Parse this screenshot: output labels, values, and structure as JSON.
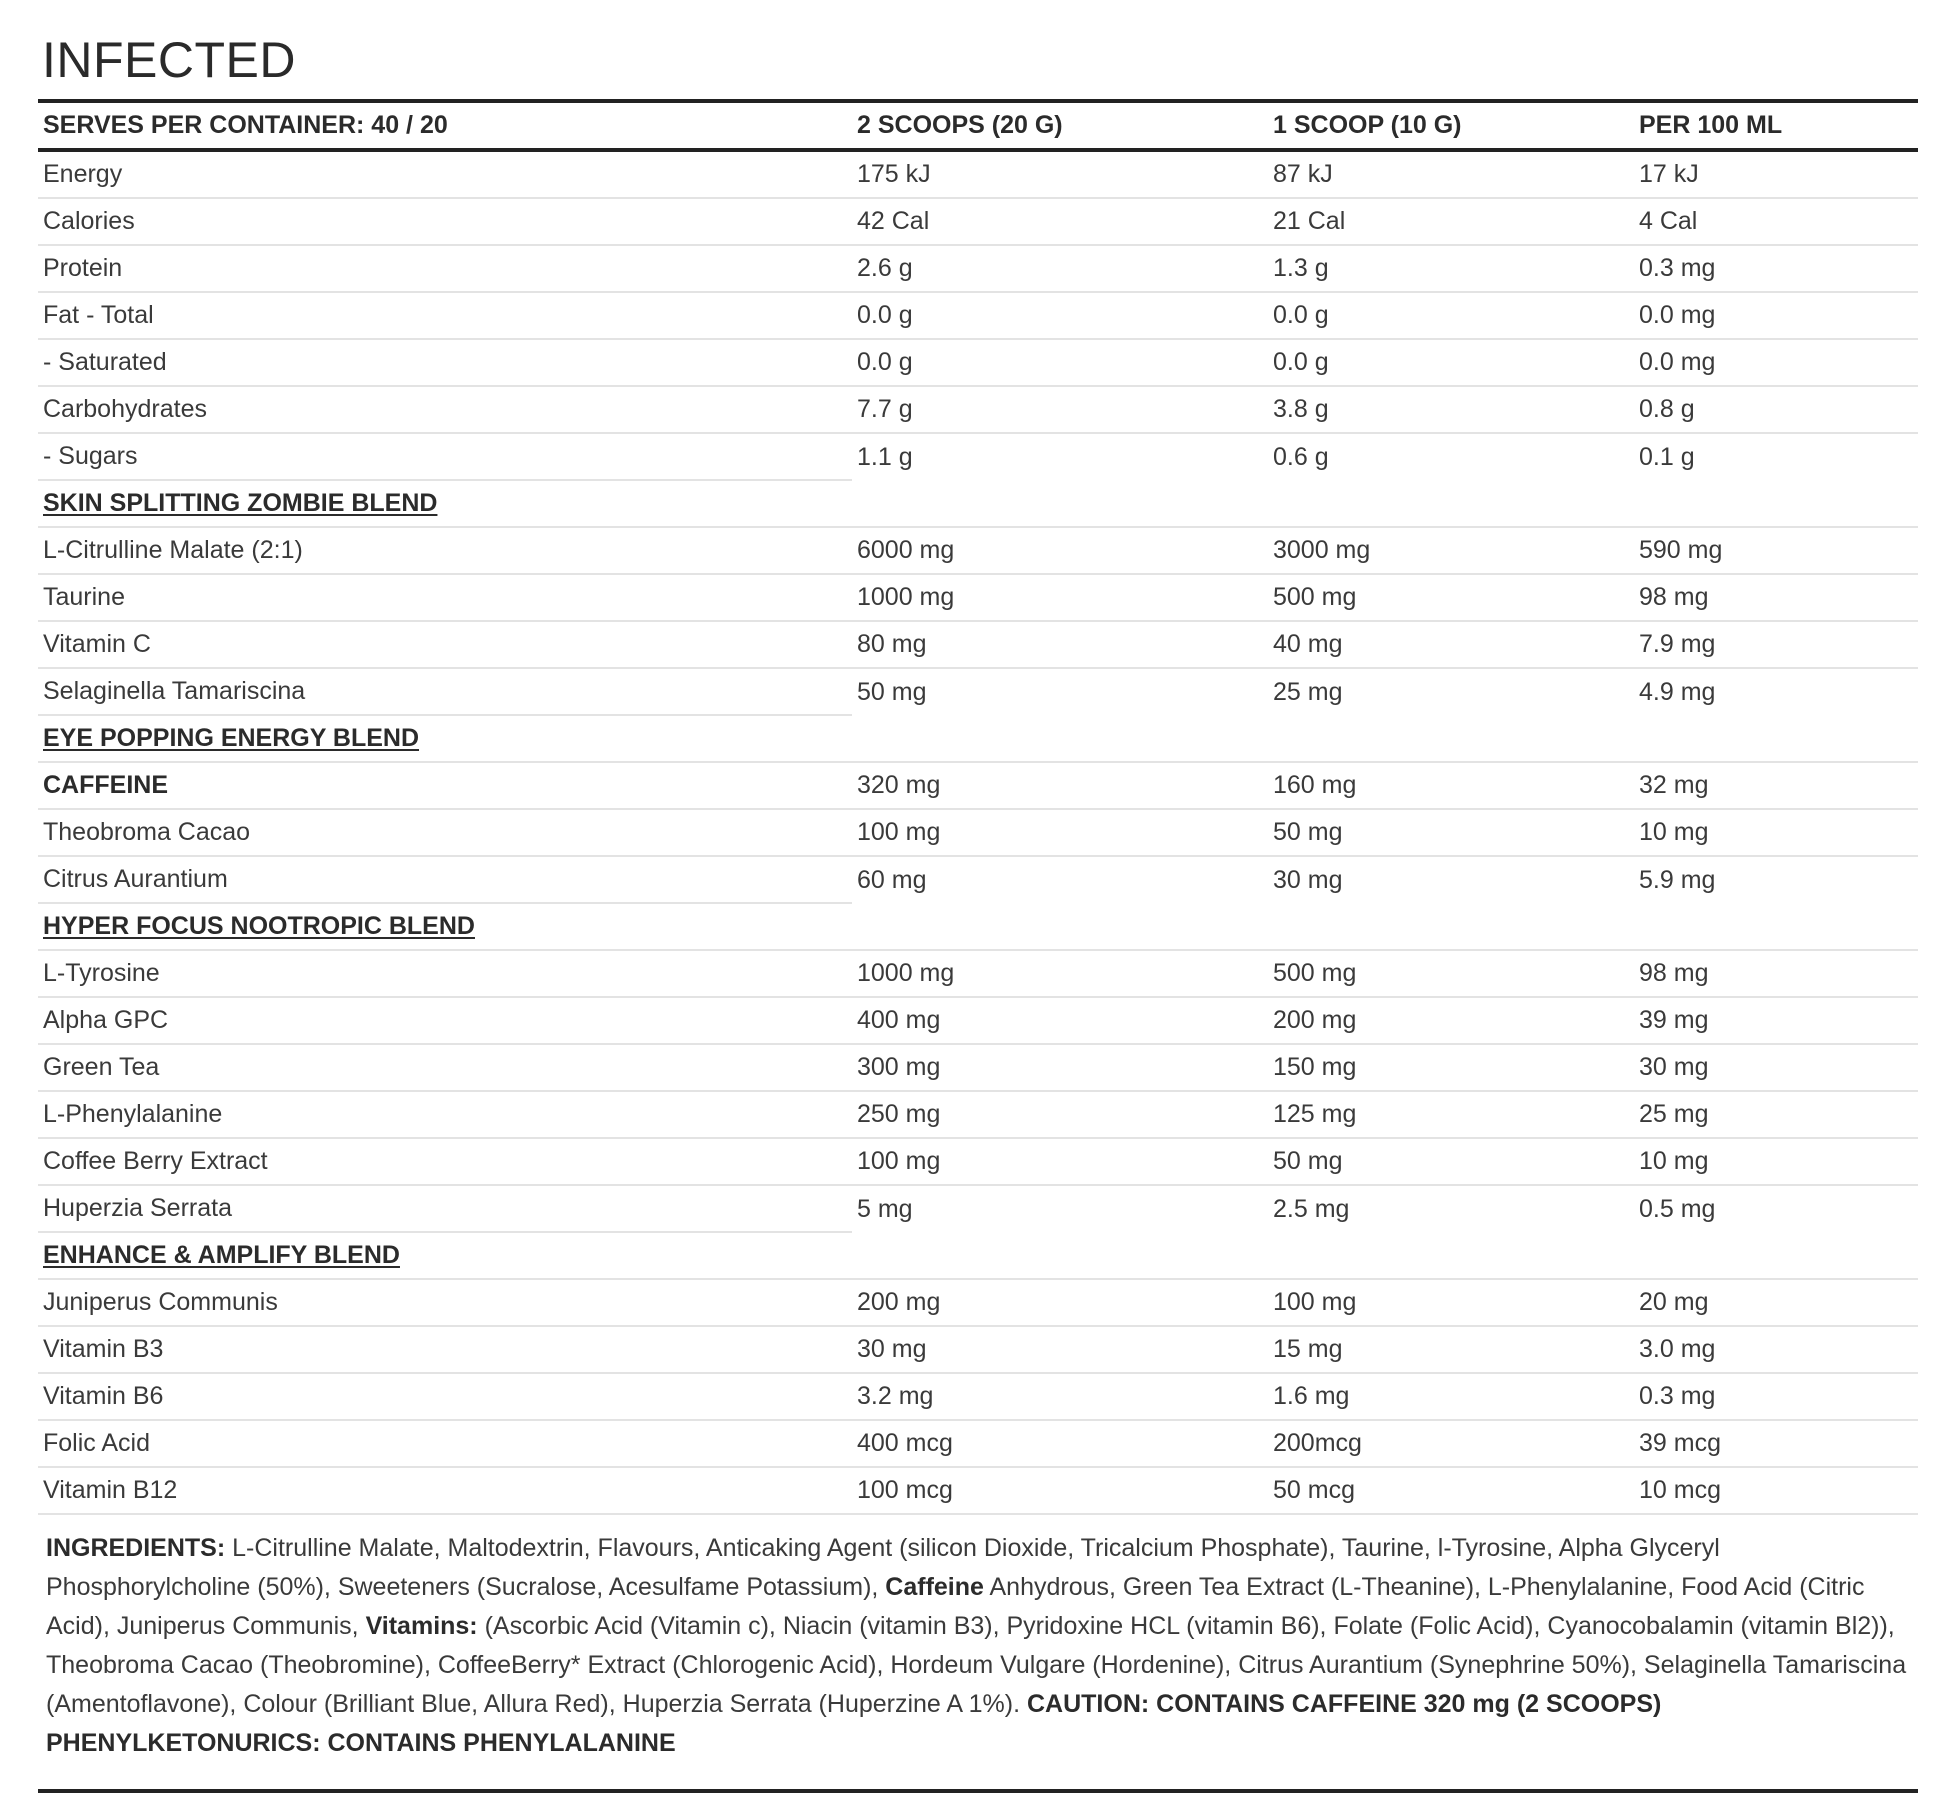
{
  "title": "INFECTED",
  "headers": [
    "SERVES PER CONTAINER: 40 / 20",
    "2 SCOOPS (20 G)",
    "1 SCOOP (10 G)",
    "PER 100 ML"
  ],
  "rows": [
    {
      "kind": "item",
      "name": "Energy",
      "values": [
        "175 kJ",
        "87 kJ",
        "17 kJ"
      ]
    },
    {
      "kind": "item",
      "name": "Calories",
      "values": [
        "42 Cal",
        "21 Cal",
        "4 Cal"
      ]
    },
    {
      "kind": "item",
      "name": "Protein",
      "values": [
        "2.6 g",
        "1.3 g",
        "0.3 mg"
      ]
    },
    {
      "kind": "item",
      "name": "Fat - Total",
      "values": [
        "0.0 g",
        "0.0 g",
        "0.0 mg"
      ]
    },
    {
      "kind": "item",
      "name": "- Saturated",
      "values": [
        "0.0 g",
        "0.0 g",
        "0.0 mg"
      ]
    },
    {
      "kind": "item",
      "name": "Carbohydrates",
      "values": [
        "7.7 g",
        "3.8 g",
        "0.8 g"
      ]
    },
    {
      "kind": "item",
      "name": "- Sugars",
      "values": [
        "1.1 g",
        "0.6 g",
        "0.1 g"
      ]
    },
    {
      "kind": "section",
      "name": "SKIN SPLITTING ZOMBIE BLEND"
    },
    {
      "kind": "item",
      "name": "L-Citrulline Malate (2:1)",
      "values": [
        "6000 mg",
        "3000 mg",
        "590 mg"
      ]
    },
    {
      "kind": "item",
      "name": "Taurine",
      "values": [
        "1000 mg",
        "500 mg",
        "98 mg"
      ]
    },
    {
      "kind": "item",
      "name": "Vitamin C",
      "values": [
        "80 mg",
        "40 mg",
        "7.9 mg"
      ]
    },
    {
      "kind": "item",
      "name": "Selaginella Tamariscina",
      "values": [
        "50 mg",
        "25 mg",
        "4.9 mg"
      ]
    },
    {
      "kind": "section",
      "name": "EYE POPPING ENERGY BLEND"
    },
    {
      "kind": "item",
      "name": "CAFFEINE",
      "bold": true,
      "values": [
        "320 mg",
        "160 mg",
        "32 mg"
      ]
    },
    {
      "kind": "item",
      "name": "Theobroma Cacao",
      "values": [
        "100 mg",
        "50 mg",
        "10 mg"
      ]
    },
    {
      "kind": "item",
      "name": "Citrus Aurantium",
      "values": [
        "60 mg",
        "30 mg",
        "5.9 mg"
      ]
    },
    {
      "kind": "section",
      "name": "HYPER FOCUS NOOTROPIC BLEND"
    },
    {
      "kind": "item",
      "name": "L-Tyrosine",
      "values": [
        "1000 mg",
        "500 mg",
        "98 mg"
      ]
    },
    {
      "kind": "item",
      "name": "Alpha GPC",
      "values": [
        "400 mg",
        "200 mg",
        "39 mg"
      ]
    },
    {
      "kind": "item",
      "name": "Green Tea",
      "values": [
        "300 mg",
        "150 mg",
        "30 mg"
      ]
    },
    {
      "kind": "item",
      "name": "L-Phenylalanine",
      "values": [
        "250 mg",
        "125 mg",
        "25 mg"
      ]
    },
    {
      "kind": "item",
      "name": "Coffee Berry Extract",
      "values": [
        "100 mg",
        "50 mg",
        "10 mg"
      ]
    },
    {
      "kind": "item",
      "name": "Huperzia Serrata",
      "values": [
        "5 mg",
        "2.5 mg",
        "0.5 mg"
      ]
    },
    {
      "kind": "section",
      "name": "ENHANCE & AMPLIFY BLEND"
    },
    {
      "kind": "item",
      "name": "Juniperus Communis",
      "values": [
        "200 mg",
        "100 mg",
        "20 mg"
      ]
    },
    {
      "kind": "item",
      "name": "Vitamin B3",
      "values": [
        "30 mg",
        "15 mg",
        "3.0 mg"
      ]
    },
    {
      "kind": "item",
      "name": "Vitamin B6",
      "values": [
        "3.2 mg",
        "1.6 mg",
        "0.3 mg"
      ]
    },
    {
      "kind": "item",
      "name": "Folic Acid",
      "values": [
        "400 mcg",
        "200mcg",
        "39 mcg"
      ]
    },
    {
      "kind": "item",
      "name": "Vitamin B12",
      "values": [
        "100 mcg",
        "50 mcg",
        "10 mcg"
      ]
    }
  ],
  "ingredients": {
    "label": "INGREDIENTS:",
    "part1": " L-Citrulline Malate, Maltodextrin, Flavours, Anticaking Agent (silicon Dioxide, Tricalcium Phosphate), Taurine, l-Tyrosine, Alpha Glyceryl Phosphorylcholine (50%), Sweeteners (Sucralose, Acesulfame Potassium), ",
    "caffeine_label": "Caffeine",
    "part2": " Anhydrous, Green Tea Extract (L-Theanine), L-Phenylalanine, Food Acid (Citric Acid), Juniperus Communis, ",
    "vitamins_label": "Vitamins:",
    "part3": " (Ascorbic Acid (Vitamin c), Niacin (vitamin B3), Pyridoxine HCL (vitamin B6), Folate (Folic Acid), Cyanocobalamin (vitamin Bl2)), Theobroma Cacao (Theobromine), CoffeeBerry* Extract (Chlorogenic Acid), Hordeum Vulgare (Hordenine), Citrus Aurantium (Synephrine 50%), Selaginella Tamariscina (Amentoflavone), Colour (Brilliant Blue, Allura Red), Huperzia Serrata (Huperzine A 1%). ",
    "caution": "CAUTION: CONTAINS CAFFEINE 320 mg (2 SCOOPS) PHENYLKETONURICS: CONTAINS PHENYLALANINE"
  }
}
